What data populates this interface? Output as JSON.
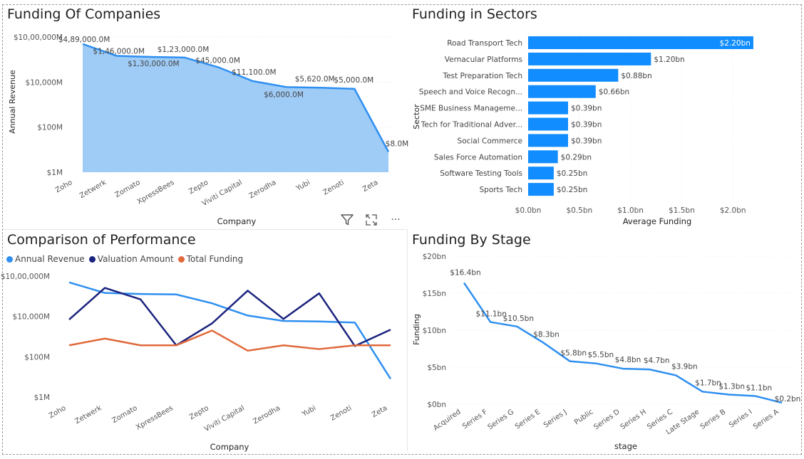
{
  "colors": {
    "light_blue": "#2e8ff0",
    "area_fill": "#9fccf7",
    "bar": "#118dff",
    "dark_navy": "#1a237e",
    "orange": "#e0683a"
  },
  "toolbar": {
    "filter_icon": "filter-icon",
    "focus_icon": "focus-mode-icon",
    "more_label": "···"
  },
  "chart_data": [
    {
      "id": "funding-of-companies",
      "type": "area",
      "title": "Funding Of Companies",
      "xlabel": "Company",
      "ylabel": "Annual Revenue",
      "yscale": "log",
      "yticks": [
        {
          "v": 1,
          "label": "$1M"
        },
        {
          "v": 100,
          "label": "$100M"
        },
        {
          "v": 10000,
          "label": "$10,000M"
        },
        {
          "v": 1000000,
          "label": "$10,00,000M"
        }
      ],
      "categories": [
        "Zoho",
        "Zetwerk",
        "Zomato",
        "XpressBees",
        "Zepto",
        "Viviti Capital",
        "Zerodha",
        "Yubi",
        "Zenoti",
        "Zeta"
      ],
      "values": [
        489000,
        146000,
        130000,
        123000,
        45000,
        11100,
        6000,
        5620,
        5000,
        8
      ],
      "labels": [
        "$4,89,000.0M",
        "$1,46,000.0M",
        "$1,30,000.0M",
        "$1,23,000.0M",
        "$45,000.0M",
        "$11,100.0M",
        "$6,000.0M",
        "$5,620.0M",
        "$5,000.0M",
        "$8.0M"
      ],
      "grid": true
    },
    {
      "id": "funding-in-sectors",
      "type": "bar",
      "orientation": "horizontal",
      "title": "Funding in Sectors",
      "xlabel": "Average Funding",
      "ylabel": "Sector",
      "xlim": [
        0,
        2.5
      ],
      "xticks": [
        {
          "v": 0,
          "label": "$0.0bn"
        },
        {
          "v": 0.5,
          "label": "$0.5bn"
        },
        {
          "v": 1,
          "label": "$1.0bn"
        },
        {
          "v": 1.5,
          "label": "$1.5bn"
        },
        {
          "v": 2,
          "label": "$2.0bn"
        }
      ],
      "categories": [
        "Road Transport Tech",
        "Vernacular Platforms",
        "Test Preparation Tech",
        "Speech and Voice Recogn...",
        "SME Business Manageme...",
        "Tech for Traditional Adver...",
        "Social Commerce",
        "Sales Force Automation",
        "Software Testing Tools",
        "Sports Tech"
      ],
      "values": [
        2.2,
        1.2,
        0.88,
        0.66,
        0.39,
        0.39,
        0.39,
        0.29,
        0.25,
        0.25
      ],
      "labels": [
        "$2.20bn",
        "$1.20bn",
        "$0.88bn",
        "$0.66bn",
        "$0.39bn",
        "$0.39bn",
        "$0.39bn",
        "$0.29bn",
        "$0.25bn",
        "$0.25bn"
      ],
      "grid": true
    },
    {
      "id": "comparison-of-performance",
      "type": "line",
      "title": "Comparison of Performance",
      "xlabel": "Company",
      "yscale": "log",
      "yticks": [
        {
          "v": 1,
          "label": "$1M"
        },
        {
          "v": 100,
          "label": "$100M"
        },
        {
          "v": 10000,
          "label": "$10,000M"
        },
        {
          "v": 1000000,
          "label": "$10,00,000M"
        }
      ],
      "categories": [
        "Zoho",
        "Zetwerk",
        "Zomato",
        "XpressBees",
        "Zepto",
        "Viviti Capital",
        "Zerodha",
        "Yubi",
        "Zenoti",
        "Zeta"
      ],
      "legend_position": "top-left",
      "series": [
        {
          "name": "Annual Revenue",
          "color": "#2e8ff0",
          "values": [
            489000,
            146000,
            130000,
            123000,
            45000,
            11100,
            6000,
            5620,
            5000,
            8
          ]
        },
        {
          "name": "Valuation Amount",
          "color": "#1a237e",
          "values": [
            7000,
            260000,
            70000,
            370,
            4500,
            190000,
            7500,
            140000,
            340,
            2200
          ]
        },
        {
          "name": "Total Funding",
          "color": "#e0683a",
          "values": [
            370,
            800,
            370,
            370,
            2000,
            200,
            370,
            240,
            370,
            370
          ]
        }
      ],
      "grid": false
    },
    {
      "id": "funding-by-stage",
      "type": "line",
      "title": "Funding By Stage",
      "xlabel": "stage",
      "ylabel": "Funding",
      "ylim": [
        0,
        20
      ],
      "yticks": [
        {
          "v": 0,
          "label": "$0bn"
        },
        {
          "v": 5,
          "label": "$5bn"
        },
        {
          "v": 10,
          "label": "$10bn"
        },
        {
          "v": 15,
          "label": "$15bn"
        },
        {
          "v": 20,
          "label": "$20bn"
        }
      ],
      "categories": [
        "Acquired",
        "Series F",
        "Series G",
        "Series E",
        "Series J",
        "Public",
        "Series D",
        "Series H",
        "Series C",
        "Late Stage",
        "Series B",
        "Series I",
        "Series A"
      ],
      "values": [
        16.4,
        11.1,
        10.5,
        8.3,
        5.8,
        5.5,
        4.8,
        4.7,
        3.9,
        1.7,
        1.3,
        1.1,
        0.2
      ],
      "labels": [
        "$16.4bn",
        "$11.1bn",
        "$10.5bn",
        "$8.3bn",
        "$5.8bn",
        "$5.5bn",
        "$4.8bn",
        "$4.7bn",
        "$3.9bn",
        "$1.7bn",
        "$1.3bn",
        "$1.1bn",
        "$0.2bn"
      ],
      "grid": true
    }
  ]
}
